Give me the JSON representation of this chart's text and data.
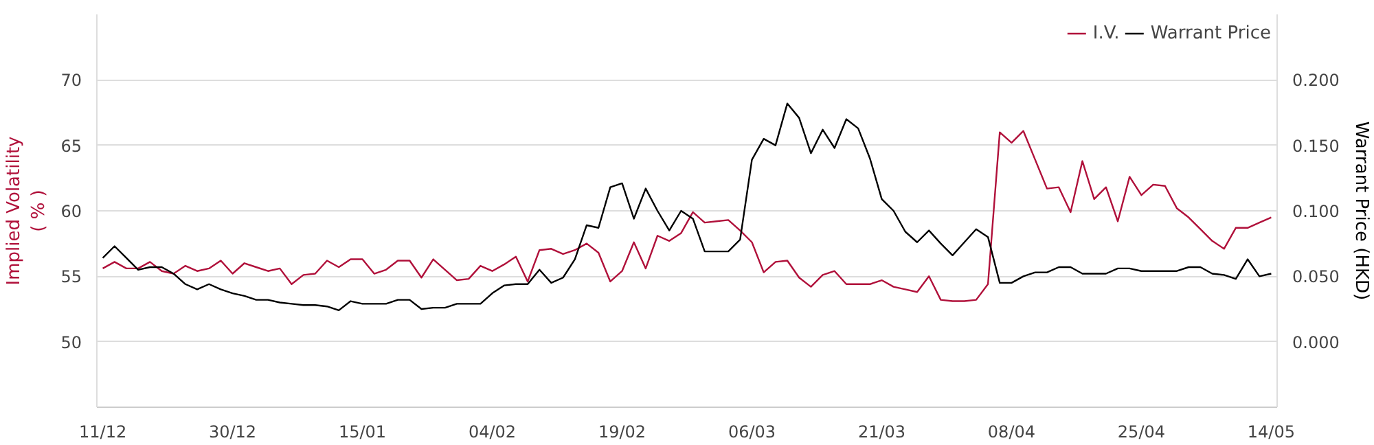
{
  "chart_data": {
    "type": "line",
    "categories": [
      "11/12",
      null,
      null,
      null,
      null,
      null,
      null,
      null,
      null,
      null,
      null,
      "30/12",
      null,
      null,
      null,
      null,
      null,
      null,
      null,
      null,
      null,
      null,
      "15/01",
      null,
      null,
      null,
      null,
      null,
      null,
      null,
      null,
      null,
      null,
      "04/02",
      null,
      null,
      null,
      null,
      null,
      null,
      null,
      null,
      null,
      null,
      "19/02",
      null,
      null,
      null,
      null,
      null,
      null,
      null,
      null,
      null,
      null,
      "06/03",
      null,
      null,
      null,
      null,
      null,
      null,
      null,
      null,
      null,
      null,
      "21/03",
      null,
      null,
      null,
      null,
      null,
      null,
      null,
      null,
      null,
      null,
      "08/04",
      null,
      null,
      null,
      null,
      null,
      null,
      null,
      null,
      null,
      null,
      "25/04",
      null,
      null,
      null,
      null,
      null,
      null,
      null,
      null,
      null,
      null,
      "14/05"
    ],
    "ylabel": "Implied Volatility\n( % )",
    "y2label": "Warrant Price (HKD)",
    "ylim": [
      45,
      75
    ],
    "yticks": [
      50,
      55,
      60,
      65,
      70
    ],
    "y2lim": [
      -0.05,
      0.25
    ],
    "y2ticks": [
      {
        "value": 0,
        "label": "0.000"
      },
      {
        "value": 0.05,
        "label": "0.050"
      },
      {
        "value": 0.1,
        "label": "0.100"
      },
      {
        "value": 0.15,
        "label": "0.150"
      },
      {
        "value": 0.2,
        "label": "0.200"
      }
    ],
    "grid": "y",
    "legend": "top right",
    "line_style": "solid",
    "series": [
      {
        "name": "I.V.",
        "color": "#b0103a",
        "values": [
          55.6,
          56.1,
          55.6,
          55.6,
          56.1,
          55.4,
          55.2,
          55.8,
          55.4,
          55.6,
          56.2,
          55.2,
          56.0,
          55.7,
          55.4,
          55.6,
          54.4,
          55.1,
          55.2,
          56.2,
          55.7,
          56.3,
          56.3,
          55.2,
          55.5,
          56.2,
          56.2,
          54.9,
          56.3,
          55.5,
          54.7,
          54.8,
          55.8,
          55.4,
          55.9,
          56.5,
          54.6,
          57.0,
          57.1,
          56.7,
          57.0,
          57.5,
          56.8,
          54.6,
          55.4,
          57.6,
          55.6,
          58.1,
          57.7,
          58.3,
          59.9,
          59.1,
          59.2,
          59.3,
          58.5,
          57.6,
          55.3,
          56.1,
          56.2,
          54.9,
          54.2,
          55.1,
          55.4,
          54.4,
          54.4,
          54.4,
          54.7,
          54.2,
          54.0,
          53.8,
          55.0,
          53.2,
          53.1,
          53.1,
          53.2,
          54.4,
          66.0,
          65.2,
          66.1,
          63.9,
          61.7,
          61.8,
          59.9,
          63.8,
          60.9,
          61.8,
          59.2,
          62.6,
          61.2,
          62.0,
          61.9,
          60.2,
          59.5,
          58.6,
          57.7,
          57.1,
          58.7,
          58.7,
          59.1,
          59.5
        ]
      },
      {
        "name": "Warrant Price",
        "color": "#000000",
        "axis": "y2",
        "values": [
          0.064,
          0.073,
          0.064,
          0.055,
          0.057,
          0.057,
          0.052,
          0.044,
          0.04,
          0.044,
          0.04,
          0.037,
          0.035,
          0.032,
          0.032,
          0.03,
          0.029,
          0.028,
          0.028,
          0.027,
          0.024,
          0.031,
          0.029,
          0.029,
          0.029,
          0.032,
          0.032,
          0.025,
          0.026,
          0.026,
          0.029,
          0.029,
          0.029,
          0.037,
          0.043,
          0.044,
          0.044,
          0.055,
          0.045,
          0.049,
          0.063,
          0.089,
          0.087,
          0.118,
          0.121,
          0.094,
          0.117,
          0.1,
          0.085,
          0.1,
          0.094,
          0.069,
          0.069,
          0.069,
          0.078,
          0.139,
          0.155,
          0.15,
          0.182,
          0.171,
          0.144,
          0.162,
          0.148,
          0.17,
          0.163,
          0.14,
          0.109,
          0.1,
          0.084,
          0.076,
          0.085,
          0.075,
          0.066,
          0.076,
          0.086,
          0.08,
          0.045,
          0.045,
          0.05,
          0.053,
          0.053,
          0.057,
          0.057,
          0.052,
          0.052,
          0.052,
          0.056,
          0.056,
          0.054,
          0.054,
          0.054,
          0.054,
          0.057,
          0.057,
          0.052,
          0.051,
          0.048,
          0.063,
          0.05,
          0.052
        ]
      }
    ]
  }
}
